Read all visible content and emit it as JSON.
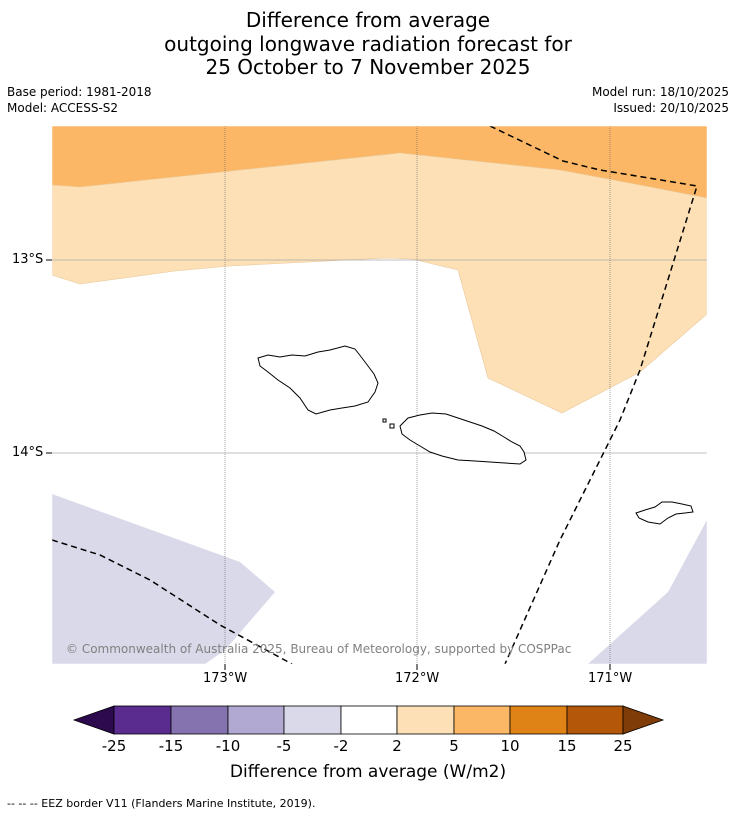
{
  "title": {
    "line1": "Difference from average",
    "line2": "outgoing longwave radiation forecast for",
    "line3": "25 October to 7 November 2025"
  },
  "meta": {
    "base_period": "Base period: 1981-2018",
    "model": "Model: ACCESS-S2",
    "model_run": "Model run: 18/10/2025",
    "issued": "Issued: 20/10/2025"
  },
  "map": {
    "lat_labels": [
      "13°S",
      "14°S"
    ],
    "lon_labels": [
      "173°W",
      "172°W",
      "171°W"
    ],
    "copyright": "© Commonwealth of Australia 2025, Bureau of Meteorology, supported by COSPPac"
  },
  "colorbar": {
    "title": "Difference from average (W/m2)",
    "ticks": [
      "-25",
      "-15",
      "-10",
      "-5",
      "-2",
      "2",
      "5",
      "10",
      "15",
      "25"
    ],
    "colors": {
      "below_-25": "#2d0a4e",
      "-25_-15": "#5b2c8f",
      "-15_-10": "#8573b0",
      "-10_-5": "#b1a9d2",
      "-5_-2": "#d9d9ea",
      "-2_2": "#ffffff",
      "2_5": "#fde0b5",
      "5_10": "#fbb765",
      "10_15": "#e08316",
      "15_25": "#b45709",
      "above_25": "#7f3b08"
    }
  },
  "footnote": "--  --  -- EEZ border V11 (Flanders Marine Institute, 2019)."
}
